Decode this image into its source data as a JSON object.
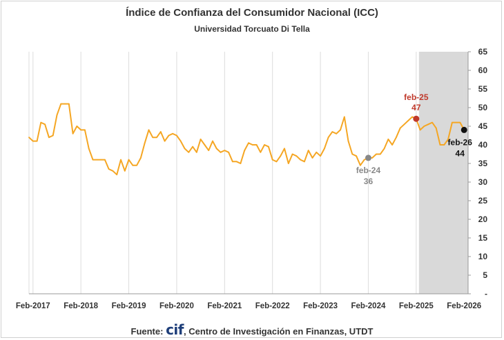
{
  "chart_data": {
    "type": "line",
    "title": "Índice de Confianza del Consumidor Nacional (ICC)",
    "subtitle": "Universidad Torcuato Di Tella",
    "ylim": [
      0,
      65
    ],
    "y_ticks": [
      "-",
      "5",
      "10",
      "15",
      "20",
      "25",
      "30",
      "35",
      "40",
      "45",
      "50",
      "55",
      "60",
      "65"
    ],
    "x_tick_labels": [
      "Feb-2017",
      "Feb-2018",
      "Feb-2019",
      "Feb-2020",
      "Feb-2021",
      "Feb-2022",
      "Feb-2023",
      "Feb-2024",
      "Feb-2025",
      "Feb-2026"
    ],
    "x_start": "Jan-2017",
    "x_end": "Mar-2026",
    "grid": "vertical",
    "line_color": "#f5a623",
    "shaded_region": {
      "from": "Feb-2025",
      "to": "Mar-2026",
      "color": "#d9d9d9"
    },
    "series": [
      {
        "values": [
          {
            "x": "Jan-2017",
            "y": 42.0
          },
          {
            "x": "Feb-2017",
            "y": 41.0
          },
          {
            "x": "Mar-2017",
            "y": 41.0
          },
          {
            "x": "Apr-2017",
            "y": 46.0
          },
          {
            "x": "May-2017",
            "y": 45.5
          },
          {
            "x": "Jun-2017",
            "y": 42.0
          },
          {
            "x": "Jul-2017",
            "y": 42.5
          },
          {
            "x": "Aug-2017",
            "y": 48.0
          },
          {
            "x": "Sep-2017",
            "y": 51.0
          },
          {
            "x": "Oct-2017",
            "y": 51.0
          },
          {
            "x": "Nov-2017",
            "y": 51.0
          },
          {
            "x": "Dec-2017",
            "y": 43.0
          },
          {
            "x": "Jan-2018",
            "y": 45.0
          },
          {
            "x": "Feb-2018",
            "y": 44.0
          },
          {
            "x": "Mar-2018",
            "y": 44.0
          },
          {
            "x": "Apr-2018",
            "y": 39.0
          },
          {
            "x": "May-2018",
            "y": 36.0
          },
          {
            "x": "Jun-2018",
            "y": 36.0
          },
          {
            "x": "Jul-2018",
            "y": 36.0
          },
          {
            "x": "Aug-2018",
            "y": 36.0
          },
          {
            "x": "Sep-2018",
            "y": 33.5
          },
          {
            "x": "Oct-2018",
            "y": 33.0
          },
          {
            "x": "Nov-2018",
            "y": 32.0
          },
          {
            "x": "Dec-2018",
            "y": 36.0
          },
          {
            "x": "Jan-2019",
            "y": 33.0
          },
          {
            "x": "Feb-2019",
            "y": 36.0
          },
          {
            "x": "Mar-2019",
            "y": 34.5
          },
          {
            "x": "Apr-2019",
            "y": 34.5
          },
          {
            "x": "May-2019",
            "y": 36.5
          },
          {
            "x": "Jun-2019",
            "y": 40.5
          },
          {
            "x": "Jul-2019",
            "y": 44.0
          },
          {
            "x": "Aug-2019",
            "y": 42.0
          },
          {
            "x": "Sep-2019",
            "y": 42.0
          },
          {
            "x": "Oct-2019",
            "y": 43.5
          },
          {
            "x": "Nov-2019",
            "y": 41.0
          },
          {
            "x": "Dec-2019",
            "y": 42.5
          },
          {
            "x": "Jan-2020",
            "y": 43.0
          },
          {
            "x": "Feb-2020",
            "y": 42.5
          },
          {
            "x": "Mar-2020",
            "y": 41.0
          },
          {
            "x": "Apr-2020",
            "y": 39.0
          },
          {
            "x": "May-2020",
            "y": 38.0
          },
          {
            "x": "Jun-2020",
            "y": 39.5
          },
          {
            "x": "Jul-2020",
            "y": 38.0
          },
          {
            "x": "Aug-2020",
            "y": 41.5
          },
          {
            "x": "Sep-2020",
            "y": 40.0
          },
          {
            "x": "Oct-2020",
            "y": 38.5
          },
          {
            "x": "Nov-2020",
            "y": 41.0
          },
          {
            "x": "Dec-2020",
            "y": 39.0
          },
          {
            "x": "Jan-2021",
            "y": 38.0
          },
          {
            "x": "Feb-2021",
            "y": 38.5
          },
          {
            "x": "Mar-2021",
            "y": 38.0
          },
          {
            "x": "Apr-2021",
            "y": 35.5
          },
          {
            "x": "May-2021",
            "y": 35.5
          },
          {
            "x": "Jun-2021",
            "y": 35.0
          },
          {
            "x": "Jul-2021",
            "y": 38.5
          },
          {
            "x": "Aug-2021",
            "y": 40.5
          },
          {
            "x": "Sep-2021",
            "y": 40.0
          },
          {
            "x": "Oct-2021",
            "y": 40.0
          },
          {
            "x": "Nov-2021",
            "y": 38.0
          },
          {
            "x": "Dec-2021",
            "y": 40.0
          },
          {
            "x": "Jan-2022",
            "y": 39.5
          },
          {
            "x": "Feb-2022",
            "y": 36.0
          },
          {
            "x": "Mar-2022",
            "y": 35.5
          },
          {
            "x": "Apr-2022",
            "y": 37.0
          },
          {
            "x": "May-2022",
            "y": 39.0
          },
          {
            "x": "Jun-2022",
            "y": 35.0
          },
          {
            "x": "Jul-2022",
            "y": 37.5
          },
          {
            "x": "Aug-2022",
            "y": 37.0
          },
          {
            "x": "Sep-2022",
            "y": 36.0
          },
          {
            "x": "Oct-2022",
            "y": 35.5
          },
          {
            "x": "Nov-2022",
            "y": 38.5
          },
          {
            "x": "Dec-2022",
            "y": 36.5
          },
          {
            "x": "Jan-2023",
            "y": 38.0
          },
          {
            "x": "Feb-2023",
            "y": 37.0
          },
          {
            "x": "Mar-2023",
            "y": 39.0
          },
          {
            "x": "Apr-2023",
            "y": 42.0
          },
          {
            "x": "May-2023",
            "y": 43.5
          },
          {
            "x": "Jun-2023",
            "y": 43.0
          },
          {
            "x": "Jul-2023",
            "y": 44.0
          },
          {
            "x": "Aug-2023",
            "y": 47.5
          },
          {
            "x": "Sep-2023",
            "y": 41.0
          },
          {
            "x": "Oct-2023",
            "y": 37.5
          },
          {
            "x": "Nov-2023",
            "y": 37.0
          },
          {
            "x": "Dec-2023",
            "y": 34.5
          },
          {
            "x": "Jan-2024",
            "y": 36.0
          },
          {
            "x": "Feb-2024",
            "y": 36.5
          },
          {
            "x": "Mar-2024",
            "y": 36.5
          },
          {
            "x": "Apr-2024",
            "y": 37.5
          },
          {
            "x": "May-2024",
            "y": 37.5
          },
          {
            "x": "Jun-2024",
            "y": 39.0
          },
          {
            "x": "Jul-2024",
            "y": 41.5
          },
          {
            "x": "Aug-2024",
            "y": 40.0
          },
          {
            "x": "Sep-2024",
            "y": 42.0
          },
          {
            "x": "Oct-2024",
            "y": 44.5
          },
          {
            "x": "Nov-2024",
            "y": 45.5
          },
          {
            "x": "Dec-2024",
            "y": 46.5
          },
          {
            "x": "Jan-2025",
            "y": 47.5
          },
          {
            "x": "Feb-2025",
            "y": 47.0
          },
          {
            "x": "Mar-2025",
            "y": 44.0
          },
          {
            "x": "Apr-2025",
            "y": 45.0
          },
          {
            "x": "May-2025",
            "y": 45.5
          },
          {
            "x": "Jun-2025",
            "y": 46.0
          },
          {
            "x": "Jul-2025",
            "y": 44.5
          },
          {
            "x": "Aug-2025",
            "y": 40.0
          },
          {
            "x": "Sep-2025",
            "y": 40.0
          },
          {
            "x": "Oct-2025",
            "y": 41.5
          },
          {
            "x": "Nov-2025",
            "y": 46.0
          },
          {
            "x": "Dec-2025",
            "y": 46.0
          },
          {
            "x": "Jan-2026",
            "y": 46.0
          },
          {
            "x": "Feb-2026",
            "y": 44.0
          }
        ]
      }
    ],
    "annotations": [
      {
        "x": "Feb-2024",
        "y": 36.5,
        "label": "feb-24",
        "value": "36",
        "color": "#888888",
        "label_pos": "below"
      },
      {
        "x": "Feb-2025",
        "y": 47.0,
        "label": "feb-25",
        "value": "47",
        "color": "#c0392b",
        "label_pos": "above"
      },
      {
        "x": "Feb-2026",
        "y": 44.0,
        "label": "feb-26",
        "value": "44",
        "color": "#111111",
        "label_pos": "below"
      }
    ]
  },
  "footer": {
    "prefix": "Fuente: ",
    "logo": "cif",
    "suffix": ", Centro de Investigación en Finanzas, UTDT"
  }
}
